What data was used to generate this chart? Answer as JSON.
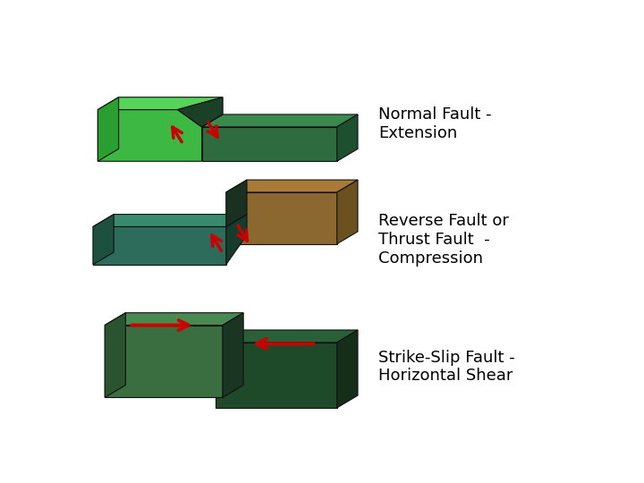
{
  "background_color": "#ffffff",
  "label_fontsize": 13,
  "labels": [
    "Normal Fault -\nExtension",
    "Reverse Fault or\nThrust Fault  -\nCompression",
    "Strike-Slip Fault -\nHorizontal Shear"
  ],
  "colors": {
    "bright_green_front": "#3cb843",
    "bright_green_top": "#56d45a",
    "bright_green_side": "#2a9e2e",
    "bright_green_fault": "#1e7a20",
    "dark_green_front": "#2e6b3e",
    "dark_green_top": "#3a8a4e",
    "dark_green_side": "#1e5030",
    "dark_green_fault": "#1a4028",
    "teal_front": "#2d6b5a",
    "teal_top": "#3a8a70",
    "teal_side": "#1e5040",
    "teal_fault": "#163c2e",
    "brown_front": "#8b6830",
    "brown_top": "#a87c38",
    "brown_side": "#6b5020",
    "med_green_front": "#3a6e40",
    "med_green_top": "#4a8a50",
    "med_green_side": "#2a5430",
    "dk_green_front": "#1e4a2a",
    "dk_green_top": "#2a6038",
    "dk_green_side": "#142e1a",
    "arrow_red": "#cc0000"
  }
}
